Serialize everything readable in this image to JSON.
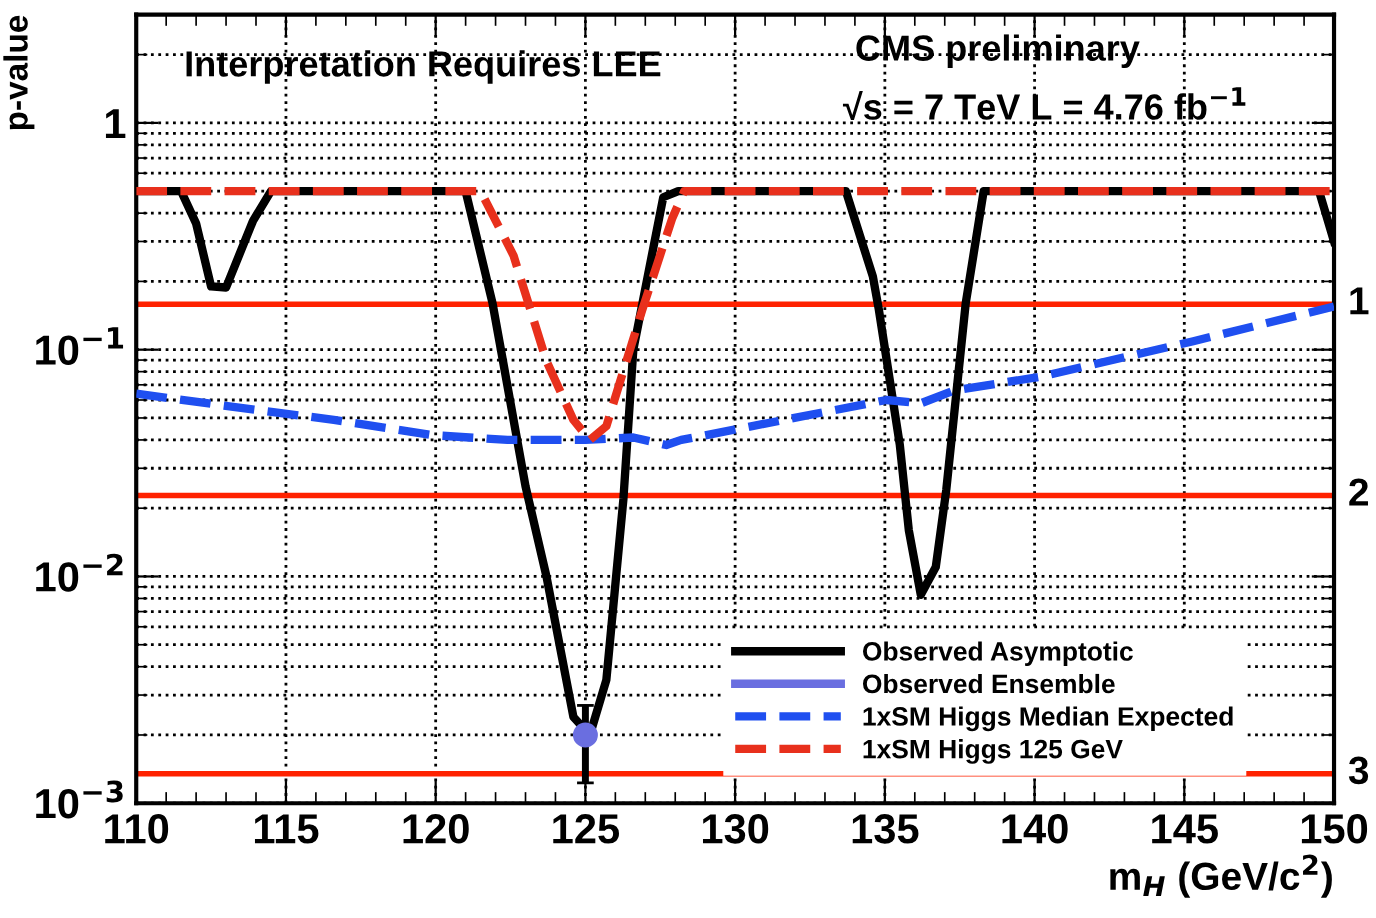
{
  "chart_data": {
    "type": "line",
    "xlabel": "m$_{H}$ (GeV/c$^{2}$)",
    "ylabel": "p-value",
    "annotations": [
      "Interpretation Requires LEE",
      "CMS preliminary",
      "√s = 7 TeV L = 4.76 fb$^{−1}$",
      "1",
      "2",
      "3"
    ],
    "log": "y",
    "grid": true,
    "legend": "bottom right",
    "line_style": "solid",
    "xlim": [
      110,
      150
    ],
    "xticks": [
      110,
      115,
      120,
      125,
      130,
      135,
      140,
      145,
      150
    ],
    "ylim": [
      0.001,
      3
    ],
    "yticks": [
      {
        "value": 0.001,
        "label": "10$^{−3}$"
      },
      {
        "value": 0.01,
        "label": "10$^{−2}$"
      },
      {
        "value": 0.1,
        "label": "10$^{−1}$"
      },
      1
    ],
    "series": [
      {
        "name": "Observed Asymptotic",
        "color": "#000000",
        "x": [
          110,
          111.5,
          112.0,
          112.5,
          113.0,
          113.9,
          114.5,
          121.0,
          121.9,
          123.0,
          123.7,
          124.6,
          125.15,
          125.7,
          126.27,
          126.6,
          127.6,
          128.1,
          133.7,
          134.6,
          134.8,
          135.5,
          135.8,
          136.2,
          136.7,
          137.05,
          137.7,
          138.3,
          149.5,
          150
        ],
        "values": [
          0.5,
          0.5,
          0.36,
          0.19,
          0.188,
          0.37,
          0.5,
          0.5,
          0.16,
          0.025,
          0.01,
          0.0024,
          0.002,
          0.0035,
          0.022,
          0.1,
          0.47,
          0.5,
          0.5,
          0.21,
          0.15,
          0.038,
          0.016,
          0.0083,
          0.011,
          0.024,
          0.16,
          0.5,
          0.5,
          0.3
        ]
      },
      {
        "name": "Observed Ensemble",
        "type": "scatter",
        "color": "#6a6ee0",
        "marker": "circle",
        "x": [
          125
        ],
        "values": [
          0.002
        ],
        "errors": [
          [
            0.00123,
            0.0027
          ]
        ]
      },
      {
        "name": "1xSM Higgs Median Expected",
        "color": "#1f4ff0",
        "line_style": "dashed",
        "x": [
          110,
          112.8,
          116.6,
          119.9,
          122.4,
          125.0,
          126.6,
          127.7,
          128.2,
          130.2,
          135.05,
          136.2,
          137.3,
          140.2,
          145.3,
          150
        ],
        "values": [
          0.064,
          0.057,
          0.049,
          0.042,
          0.04,
          0.04,
          0.041,
          0.038,
          0.04,
          0.045,
          0.06,
          0.058,
          0.066,
          0.076,
          0.109,
          0.155
        ]
      },
      {
        "name": "1xSM Higgs 125 GeV",
        "color": "#e8301c",
        "line_style": "dashed",
        "x": [
          110,
          121.5,
          122.6,
          123.7,
          124.6,
          125.15,
          125.7,
          126.9,
          127.9,
          128.3,
          150
        ],
        "values": [
          0.5,
          0.5,
          0.26,
          0.089,
          0.049,
          0.04,
          0.046,
          0.15,
          0.38,
          0.5,
          0.5
        ]
      }
    ],
    "ref_lines": [
      {
        "axis": "y",
        "value": 0.1587,
        "color": "#ff2200"
      },
      {
        "axis": "y",
        "value": 0.02275,
        "color": "#ff2200"
      },
      {
        "axis": "y",
        "value": 0.00135,
        "color": "#ff2200"
      }
    ]
  }
}
